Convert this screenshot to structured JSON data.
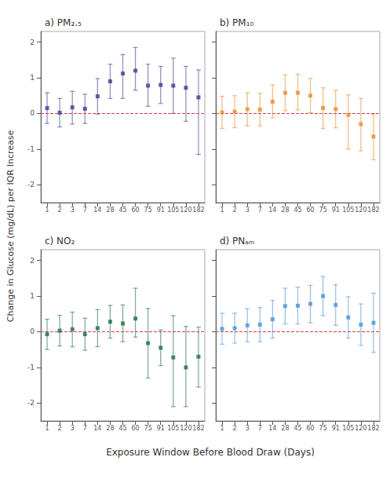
{
  "chart_data": [
    {
      "type": "errorbar",
      "title": "a) PM₂.₅",
      "xlabel": "Exposure Window Before Blood Draw (Days)",
      "ylabel": "Change in Glucose (mg/dL) per IQR Increase",
      "categories": [
        "1",
        "2",
        "3",
        "7",
        "14",
        "28",
        "45",
        "60",
        "75",
        "91",
        "105",
        "120",
        "182"
      ],
      "values": [
        0.15,
        0.02,
        0.17,
        0.13,
        0.48,
        0.9,
        1.12,
        1.2,
        0.78,
        0.8,
        0.78,
        0.72,
        0.45
      ],
      "lo": [
        -0.28,
        -0.38,
        -0.3,
        -0.28,
        -0.02,
        0.42,
        0.42,
        0.65,
        0.2,
        0.28,
        0.0,
        -0.22,
        -1.15
      ],
      "hi": [
        0.58,
        0.42,
        0.62,
        0.54,
        0.98,
        1.38,
        1.65,
        1.85,
        1.38,
        1.32,
        1.55,
        1.32,
        1.22
      ],
      "color": "#3B3B8C",
      "marker": "square",
      "reference_line": {
        "value": 0,
        "color": "#CC4444",
        "line_style": "dashed"
      },
      "ylim": [
        -2.5,
        2.3
      ],
      "yticks": [
        -2,
        -1,
        0,
        1,
        2
      ],
      "grid": false
    },
    {
      "type": "errorbar",
      "title": "b) PM₁₀",
      "categories": [
        "1",
        "2",
        "3",
        "7",
        "14",
        "28",
        "45",
        "60",
        "75",
        "91",
        "105",
        "120",
        "182"
      ],
      "values": [
        0.03,
        0.05,
        0.12,
        0.11,
        0.33,
        0.58,
        0.58,
        0.5,
        0.15,
        0.12,
        -0.04,
        -0.3,
        -0.65
      ],
      "lo": [
        -0.42,
        -0.4,
        -0.35,
        -0.35,
        -0.12,
        0.08,
        0.1,
        0.02,
        -0.42,
        -0.4,
        -1.0,
        -1.05,
        -1.3
      ],
      "hi": [
        0.48,
        0.5,
        0.58,
        0.56,
        0.8,
        1.08,
        1.1,
        0.98,
        0.72,
        0.65,
        0.52,
        0.42,
        -0.02
      ],
      "color": "#E8892A",
      "marker": "square",
      "reference_line": {
        "value": 0,
        "color": "#CC4444",
        "line_style": "dashed"
      },
      "ylim": [
        -2.5,
        2.3
      ],
      "yticks": [
        -2,
        -1,
        0,
        1,
        2
      ],
      "grid": false,
      "tick_labels": "x"
    },
    {
      "type": "errorbar",
      "title": "c) NO₂",
      "categories": [
        "1",
        "2",
        "3",
        "7",
        "14",
        "28",
        "45",
        "60",
        "75",
        "91",
        "105",
        "120",
        "182"
      ],
      "values": [
        -0.07,
        0.03,
        0.07,
        -0.07,
        0.1,
        0.28,
        0.23,
        0.37,
        -0.32,
        -0.45,
        -0.72,
        -1.0,
        -0.7
      ],
      "lo": [
        -0.5,
        -0.4,
        -0.42,
        -0.52,
        -0.42,
        -0.18,
        -0.28,
        -0.15,
        -1.3,
        -0.95,
        -2.1,
        -2.1,
        -1.55
      ],
      "hi": [
        0.35,
        0.46,
        0.55,
        0.38,
        0.62,
        0.74,
        0.75,
        1.22,
        0.65,
        0.05,
        0.45,
        0.15,
        0.13
      ],
      "color": "#1B6B4A",
      "marker": "square",
      "reference_line": {
        "value": 0,
        "color": "#CC4444",
        "line_style": "dashed"
      },
      "ylim": [
        -2.5,
        2.3
      ],
      "yticks": [
        -2,
        -1,
        0,
        1,
        2
      ],
      "grid": false
    },
    {
      "type": "errorbar",
      "title": "d) PNₐₘ",
      "categories": [
        "1",
        "2",
        "3",
        "7",
        "14",
        "28",
        "45",
        "60",
        "75",
        "91",
        "105",
        "120",
        "182"
      ],
      "values": [
        0.08,
        0.1,
        0.18,
        0.2,
        0.35,
        0.72,
        0.73,
        0.78,
        1.0,
        0.75,
        0.4,
        0.2,
        0.25
      ],
      "lo": [
        -0.35,
        -0.32,
        -0.28,
        -0.28,
        -0.18,
        0.22,
        0.22,
        0.25,
        0.45,
        0.18,
        -0.18,
        -0.38,
        -0.58
      ],
      "hi": [
        0.52,
        0.52,
        0.65,
        0.68,
        0.88,
        1.22,
        1.25,
        1.3,
        1.55,
        1.32,
        0.98,
        0.78,
        1.08
      ],
      "color": "#4A90D9",
      "marker": "square",
      "reference_line": {
        "value": 0,
        "color": "#CC4444",
        "line_style": "dashed"
      },
      "ylim": [
        -2.5,
        2.3
      ],
      "yticks": [
        -2,
        -1,
        0,
        1,
        2
      ],
      "grid": false,
      "tick_labels": "x"
    }
  ]
}
